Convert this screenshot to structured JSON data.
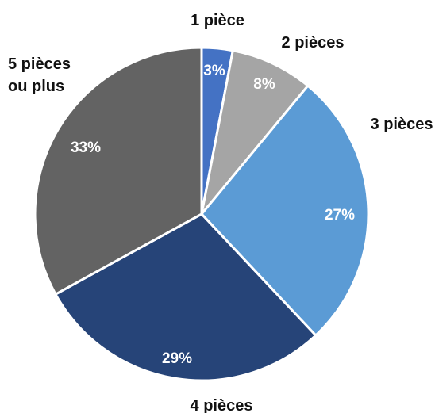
{
  "chart_data": {
    "type": "pie",
    "title": "",
    "categories": [
      "1 pièce",
      "2 pièces",
      "3 pièces",
      "4 pièces",
      "5 pièces ou plus"
    ],
    "category_label_lines": [
      [
        "1 pièce"
      ],
      [
        "2 pièces"
      ],
      [
        "3 pièces"
      ],
      [
        "4 pièces"
      ],
      [
        "5 pièces",
        "ou plus"
      ]
    ],
    "values": [
      3,
      8,
      27,
      29,
      33
    ],
    "value_labels": [
      "3%",
      "8%",
      "27%",
      "29%",
      "33%"
    ],
    "colors": [
      "#4472c4",
      "#a5a5a5",
      "#5b9bd5",
      "#264478",
      "#636363"
    ],
    "start_angle": "12 o'clock",
    "direction": "clockwise",
    "legend": "none"
  }
}
